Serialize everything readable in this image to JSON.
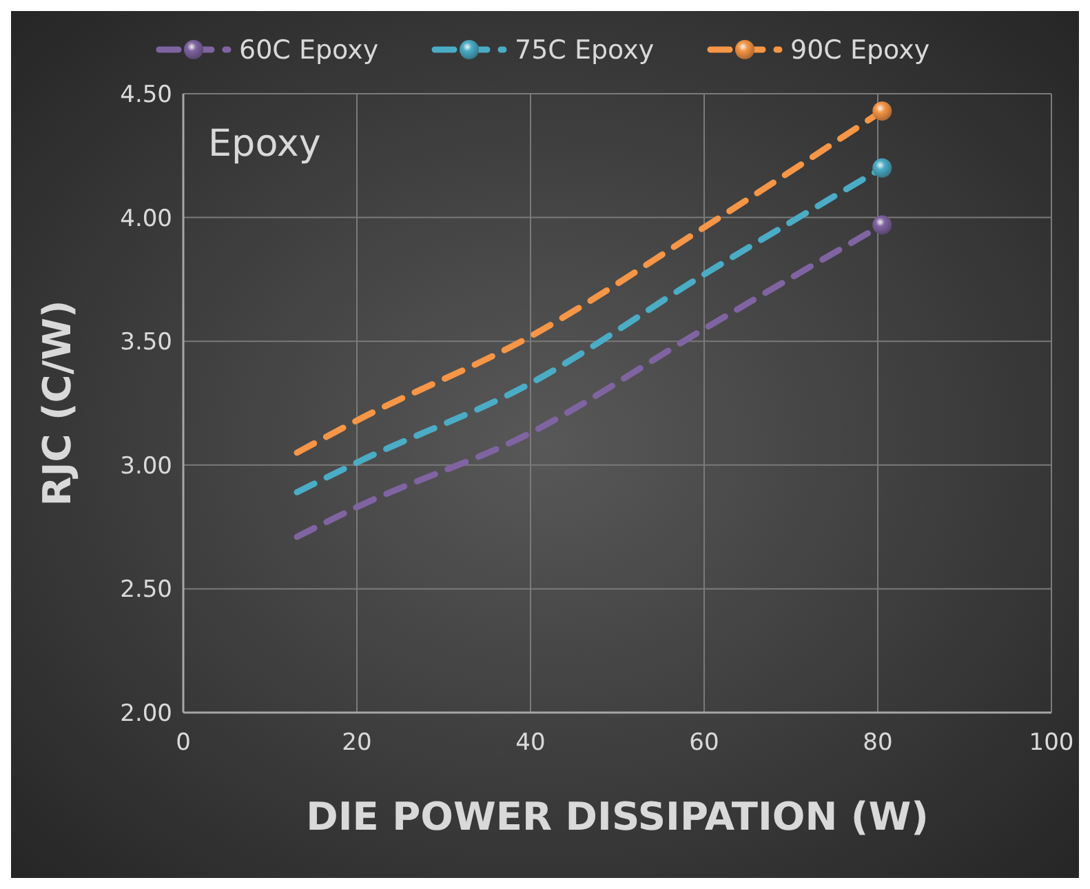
{
  "chart_data": {
    "type": "line",
    "xlabel": "DIE POWER DISSIPATION (W)",
    "ylabel": "RJC (C/W)",
    "annotations": [
      "Epoxy"
    ],
    "xlim": [
      0,
      100
    ],
    "xticks": [
      0,
      20,
      40,
      60,
      80,
      100
    ],
    "ylim": [
      2,
      4.5
    ],
    "yticks": [
      {
        "value": 2,
        "label": "2.00"
      },
      {
        "value": 2.5,
        "label": "2.50"
      },
      {
        "value": 3,
        "label": "3.00"
      },
      {
        "value": 3.5,
        "label": "3.50"
      },
      {
        "value": 4,
        "label": "4.00"
      },
      {
        "value": 4.5,
        "label": "4.50"
      }
    ],
    "grid": true,
    "legend": "top",
    "line_style": "dashed",
    "x": [
      13.1,
      20,
      40,
      60,
      80.5
    ],
    "series": [
      {
        "name": "60C Epoxy",
        "color": "#8064a2",
        "values": [
          2.71,
          2.83,
          3.13,
          3.55,
          3.97
        ]
      },
      {
        "name": "75C Epoxy",
        "color": "#4bacc6",
        "values": [
          2.89,
          3.01,
          3.33,
          3.77,
          4.2
        ]
      },
      {
        "name": "90C Epoxy",
        "color": "#f79646",
        "values": [
          3.05,
          3.18,
          3.52,
          3.96,
          4.43
        ]
      }
    ]
  }
}
